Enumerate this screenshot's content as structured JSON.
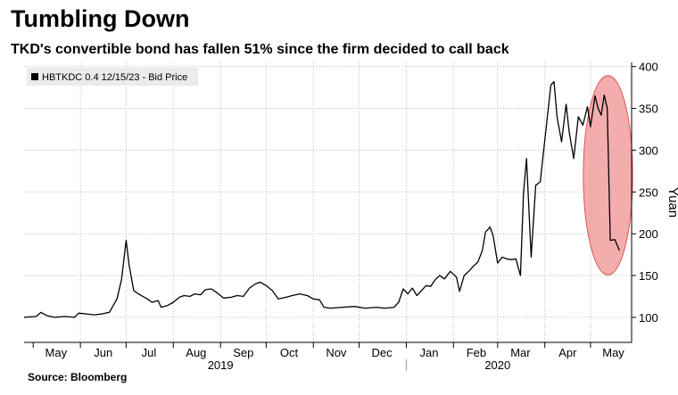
{
  "title": "Tumbling Down",
  "subtitle": "TKD's convertible bond has fallen 51% since the firm decided to call back",
  "source": "Source: Bloomberg",
  "colors": {
    "line": "#000000",
    "highlight_fill": "#f08a8a",
    "highlight_stroke": "#e05555",
    "grid": "#bdbdbd"
  },
  "chart_data": {
    "type": "line",
    "title": "Tumbling Down",
    "subtitle": "TKD's convertible bond has fallen 51% since the firm decided to call back",
    "ylabel": "Yuan",
    "xlabel": "",
    "ylim": [
      70,
      405
    ],
    "yticks": [
      100,
      150,
      200,
      250,
      300,
      350,
      400
    ],
    "grid": true,
    "y_axis_position": "right",
    "legend_placement": "top-left",
    "month_ticks": [
      {
        "label": "May",
        "year": 2019,
        "month": 5
      },
      {
        "label": "Jun",
        "year": 2019,
        "month": 6
      },
      {
        "label": "Jul",
        "year": 2019,
        "month": 7
      },
      {
        "label": "Aug",
        "year": 2019,
        "month": 8
      },
      {
        "label": "Sep",
        "year": 2019,
        "month": 9
      },
      {
        "label": "Oct",
        "year": 2019,
        "month": 10
      },
      {
        "label": "Nov",
        "year": 2019,
        "month": 11
      },
      {
        "label": "Dec",
        "year": 2019,
        "month": 12
      },
      {
        "label": "Jan",
        "year": 2020,
        "month": 1
      },
      {
        "label": "Feb",
        "year": 2020,
        "month": 2
      },
      {
        "label": "Mar",
        "year": 2020,
        "month": 3
      },
      {
        "label": "Apr",
        "year": 2020,
        "month": 4
      },
      {
        "label": "May",
        "year": 2020,
        "month": 5
      }
    ],
    "year_labels": [
      {
        "label": "2019",
        "year": 2019,
        "month": 9
      },
      {
        "label": "2020",
        "year": 2020,
        "month": 3
      }
    ],
    "series": [
      {
        "name": "HBTKDC 0.4 12/15/23 - Bid Price",
        "points": [
          [
            "2019-04-25",
            100
          ],
          [
            "2019-05-03",
            101
          ],
          [
            "2019-05-06",
            106
          ],
          [
            "2019-05-10",
            102
          ],
          [
            "2019-05-15",
            100
          ],
          [
            "2019-05-22",
            101
          ],
          [
            "2019-05-28",
            100
          ],
          [
            "2019-05-31",
            105
          ],
          [
            "2019-06-05",
            104
          ],
          [
            "2019-06-10",
            103
          ],
          [
            "2019-06-15",
            104
          ],
          [
            "2019-06-20",
            106
          ],
          [
            "2019-06-25",
            122
          ],
          [
            "2019-06-28",
            145
          ],
          [
            "2019-07-01",
            192
          ],
          [
            "2019-07-03",
            162
          ],
          [
            "2019-07-06",
            132
          ],
          [
            "2019-07-09",
            128
          ],
          [
            "2019-07-12",
            125
          ],
          [
            "2019-07-15",
            122
          ],
          [
            "2019-07-18",
            118
          ],
          [
            "2019-07-22",
            120
          ],
          [
            "2019-07-24",
            112
          ],
          [
            "2019-07-28",
            114
          ],
          [
            "2019-08-01",
            118
          ],
          [
            "2019-08-05",
            124
          ],
          [
            "2019-08-08",
            126
          ],
          [
            "2019-08-12",
            125
          ],
          [
            "2019-08-15",
            128
          ],
          [
            "2019-08-19",
            127
          ],
          [
            "2019-08-22",
            133
          ],
          [
            "2019-08-26",
            134
          ],
          [
            "2019-08-30",
            129
          ],
          [
            "2019-09-03",
            123
          ],
          [
            "2019-09-08",
            124
          ],
          [
            "2019-09-12",
            126
          ],
          [
            "2019-09-16",
            125
          ],
          [
            "2019-09-20",
            135
          ],
          [
            "2019-09-24",
            140
          ],
          [
            "2019-09-27",
            142
          ],
          [
            "2019-10-01",
            138
          ],
          [
            "2019-10-05",
            132
          ],
          [
            "2019-10-09",
            122
          ],
          [
            "2019-10-14",
            124
          ],
          [
            "2019-10-18",
            126
          ],
          [
            "2019-10-23",
            128
          ],
          [
            "2019-10-28",
            126
          ],
          [
            "2019-11-01",
            122
          ],
          [
            "2019-11-05",
            121
          ],
          [
            "2019-11-08",
            112
          ],
          [
            "2019-11-12",
            111
          ],
          [
            "2019-11-20",
            112
          ],
          [
            "2019-11-28",
            113
          ],
          [
            "2019-12-05",
            111
          ],
          [
            "2019-12-12",
            112
          ],
          [
            "2019-12-18",
            111
          ],
          [
            "2019-12-24",
            112
          ],
          [
            "2019-12-27",
            118
          ],
          [
            "2019-12-30",
            134
          ],
          [
            "2020-01-02",
            128
          ],
          [
            "2020-01-05",
            135
          ],
          [
            "2020-01-08",
            126
          ],
          [
            "2020-01-11",
            132
          ],
          [
            "2020-01-14",
            138
          ],
          [
            "2020-01-17",
            137
          ],
          [
            "2020-01-20",
            145
          ],
          [
            "2020-01-23",
            150
          ],
          [
            "2020-01-26",
            146
          ],
          [
            "2020-01-30",
            155
          ],
          [
            "2020-02-03",
            148
          ],
          [
            "2020-02-05",
            131
          ],
          [
            "2020-02-08",
            150
          ],
          [
            "2020-02-11",
            155
          ],
          [
            "2020-02-14",
            161
          ],
          [
            "2020-02-17",
            166
          ],
          [
            "2020-02-20",
            180
          ],
          [
            "2020-02-22",
            202
          ],
          [
            "2020-02-25",
            208
          ],
          [
            "2020-02-27",
            198
          ],
          [
            "2020-03-01",
            165
          ],
          [
            "2020-03-04",
            172
          ],
          [
            "2020-03-07",
            170
          ],
          [
            "2020-03-10",
            169
          ],
          [
            "2020-03-13",
            170
          ],
          [
            "2020-03-16",
            150
          ],
          [
            "2020-03-18",
            248
          ],
          [
            "2020-03-20",
            290
          ],
          [
            "2020-03-23",
            172
          ],
          [
            "2020-03-26",
            258
          ],
          [
            "2020-03-29",
            262
          ],
          [
            "2020-04-01",
            312
          ],
          [
            "2020-04-03",
            345
          ],
          [
            "2020-04-05",
            378
          ],
          [
            "2020-04-07",
            382
          ],
          [
            "2020-04-09",
            340
          ],
          [
            "2020-04-12",
            310
          ],
          [
            "2020-04-15",
            355
          ],
          [
            "2020-04-17",
            322
          ],
          [
            "2020-04-20",
            290
          ],
          [
            "2020-04-23",
            340
          ],
          [
            "2020-04-26",
            330
          ],
          [
            "2020-04-29",
            352
          ],
          [
            "2020-05-01",
            328
          ],
          [
            "2020-05-04",
            365
          ],
          [
            "2020-05-06",
            350
          ],
          [
            "2020-05-08",
            342
          ],
          [
            "2020-05-10",
            366
          ],
          [
            "2020-05-12",
            350
          ],
          [
            "2020-05-14",
            192
          ],
          [
            "2020-05-17",
            193
          ],
          [
            "2020-05-20",
            180
          ]
        ]
      }
    ]
  }
}
